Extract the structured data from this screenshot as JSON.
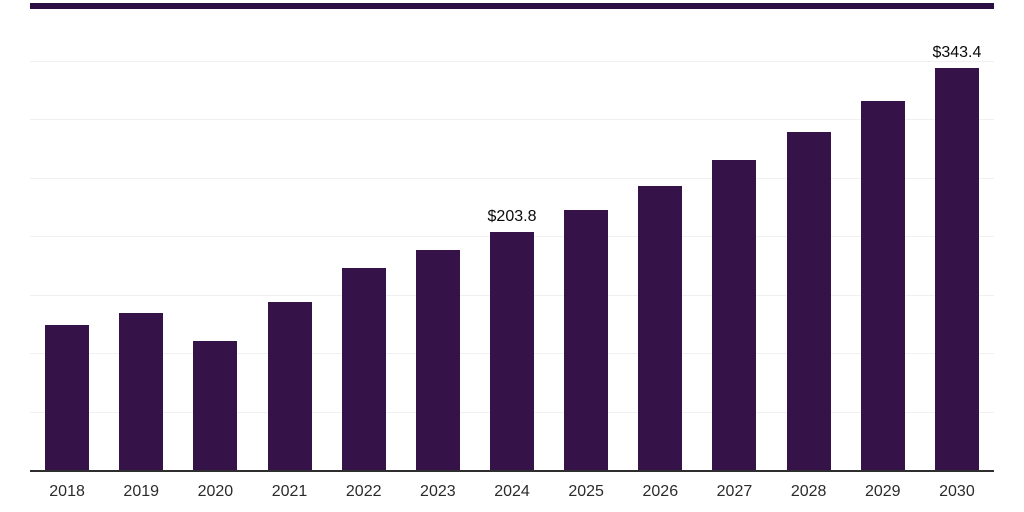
{
  "chart_data": {
    "type": "bar",
    "categories": [
      "2018",
      "2019",
      "2020",
      "2021",
      "2022",
      "2023",
      "2024",
      "2025",
      "2026",
      "2027",
      "2028",
      "2029",
      "2030"
    ],
    "values": [
      124,
      134,
      110,
      144,
      173,
      188,
      203.8,
      222,
      243,
      265,
      289,
      315,
      343.4
    ],
    "value_labels": [
      "",
      "",
      "",
      "",
      "",
      "",
      "$203.8",
      "",
      "",
      "",
      "",
      "",
      "$343.4"
    ],
    "ylim": [
      0,
      400
    ],
    "gridline_step": 50,
    "grid": "horizontal-only",
    "legend": "none",
    "y_axis_tick_labels": "none",
    "colors": {
      "bar": "#351349",
      "top_border": "#2b0f42",
      "axis_line": "#2e2e2e",
      "gridline": "#f0f0f2",
      "tick_label": "#2b2b2b",
      "data_label": "#0a0a0a",
      "background": "#ffffff"
    }
  }
}
